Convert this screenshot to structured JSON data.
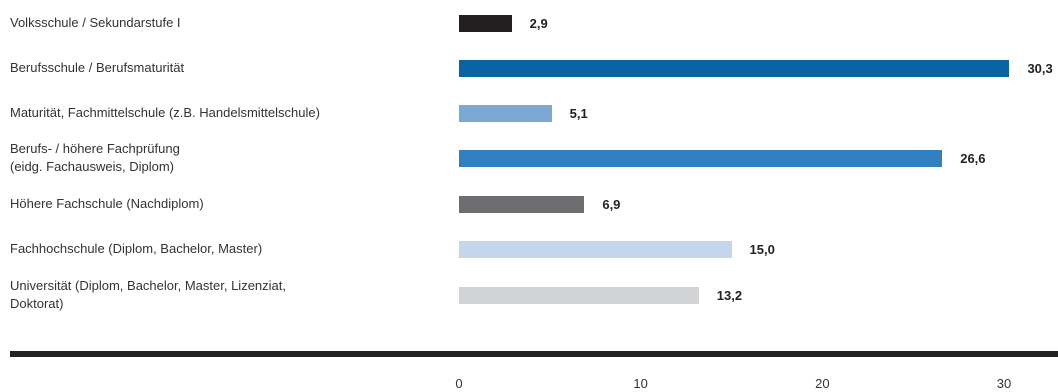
{
  "chart_data": {
    "type": "bar",
    "orientation": "horizontal",
    "categories": [
      "Volksschule / Sekundarstufe I",
      "Berufsschule / Berufsmaturität",
      "Maturität, Fachmittelschule (z.B. Handelsmittelschule)",
      "Berufs- / höhere Fachprüfung\n(eidg. Fachausweis, Diplom)",
      "Höhere Fachschule (Nachdiplom)",
      "Fachhochschule (Diplom, Bachelor, Master)",
      "Universität (Diplom, Bachelor, Master, Lizenziat,\nDoktorat)"
    ],
    "values": [
      2.9,
      30.3,
      5.1,
      26.6,
      6.9,
      15.0,
      13.2
    ],
    "value_labels": [
      "2,9",
      "30,3",
      "5,1",
      "26,6",
      "6,9",
      "15,0",
      "13,2"
    ],
    "colors": [
      "#231f20",
      "#0a63a3",
      "#7ba7d3",
      "#2f7fc1",
      "#6d6e71",
      "#c4d6ec",
      "#d2d3d4"
    ],
    "xlim": [
      0,
      30
    ],
    "ticks": [
      "0",
      "10",
      "20",
      "30"
    ],
    "tick_values": [
      0,
      10,
      20,
      30
    ],
    "title": "",
    "xlabel": "",
    "ylabel": "",
    "grid": false
  }
}
